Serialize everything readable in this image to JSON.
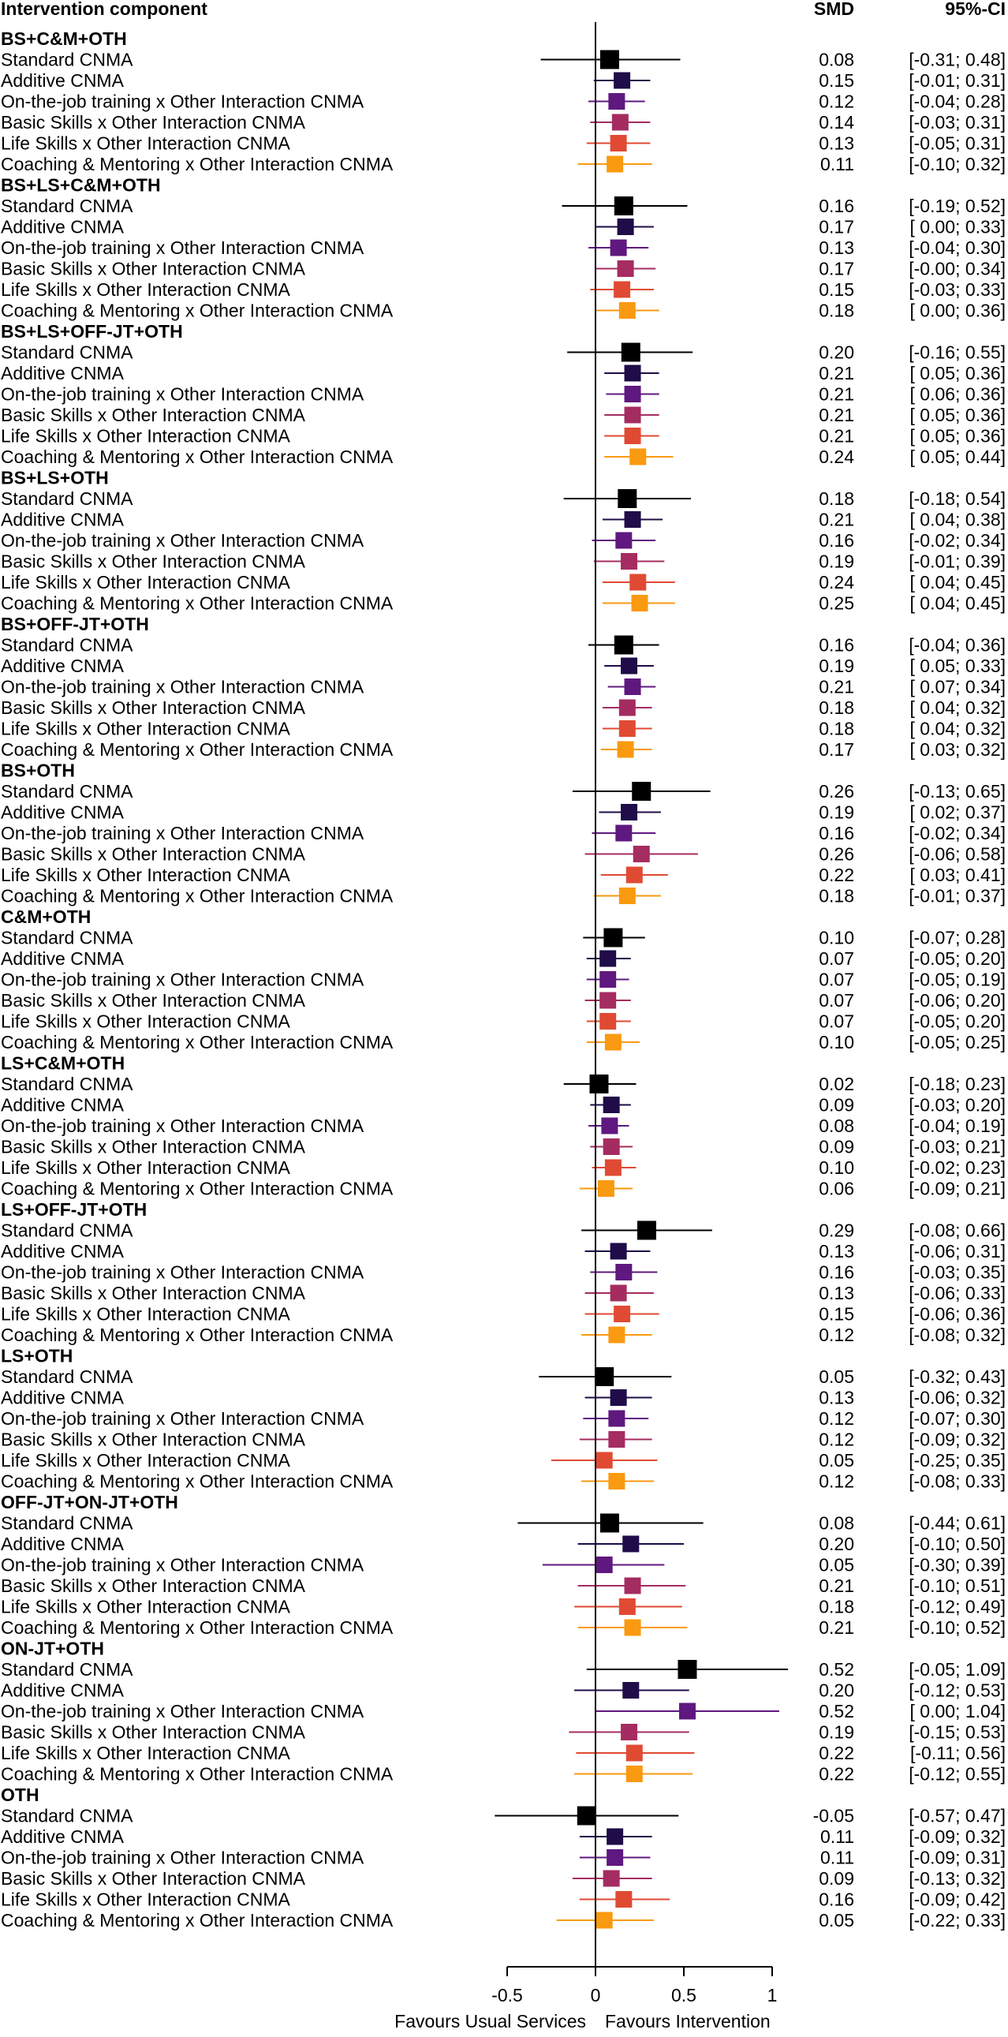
{
  "chart_data": {
    "type": "forest",
    "header": {
      "label": "Intervention component",
      "estimate": "SMD",
      "ci": "95%-CI"
    },
    "x_axis": {
      "range": [
        -0.6,
        1.1
      ],
      "ticks": [
        -0.5,
        0,
        0.5,
        1
      ],
      "tick_labels": [
        "-0.5",
        "0",
        "0.5",
        "1"
      ],
      "left_label": "Favours Usual Services",
      "right_label": "Favours Intervention",
      "reference_line": 0
    },
    "methods": [
      {
        "name": "Standard CNMA",
        "color": "#000000"
      },
      {
        "name": "Additive CNMA",
        "color": "#1f0c48"
      },
      {
        "name": "On-the-job training x Other Interaction CNMA",
        "color": "#5f187f"
      },
      {
        "name": "Basic Skills x Other Interaction CNMA",
        "color": "#a52c60"
      },
      {
        "name": "Life Skills x Other Interaction CNMA",
        "color": "#e04a33"
      },
      {
        "name": "Coaching & Mentoring x Other Interaction CNMA",
        "color": "#f99a10"
      }
    ],
    "groups": [
      {
        "name": "BS+C&M+OTH",
        "estimates": [
          {
            "smd": 0.08,
            "lower": -0.31,
            "upper": 0.48,
            "smd_label": "0.08",
            "ci_label": "[-0.31; 0.48]"
          },
          {
            "smd": 0.15,
            "lower": -0.01,
            "upper": 0.31,
            "smd_label": "0.15",
            "ci_label": "[-0.01; 0.31]"
          },
          {
            "smd": 0.12,
            "lower": -0.04,
            "upper": 0.28,
            "smd_label": "0.12",
            "ci_label": "[-0.04; 0.28]"
          },
          {
            "smd": 0.14,
            "lower": -0.03,
            "upper": 0.31,
            "smd_label": "0.14",
            "ci_label": "[-0.03; 0.31]"
          },
          {
            "smd": 0.13,
            "lower": -0.05,
            "upper": 0.31,
            "smd_label": "0.13",
            "ci_label": "[-0.05; 0.31]"
          },
          {
            "smd": 0.11,
            "lower": -0.1,
            "upper": 0.32,
            "smd_label": "0.11",
            "ci_label": "[-0.10; 0.32]"
          }
        ]
      },
      {
        "name": "BS+LS+C&M+OTH",
        "estimates": [
          {
            "smd": 0.16,
            "lower": -0.19,
            "upper": 0.52,
            "smd_label": "0.16",
            "ci_label": "[-0.19; 0.52]"
          },
          {
            "smd": 0.17,
            "lower": 0.0,
            "upper": 0.33,
            "smd_label": "0.17",
            "ci_label": "[ 0.00; 0.33]"
          },
          {
            "smd": 0.13,
            "lower": -0.04,
            "upper": 0.3,
            "smd_label": "0.13",
            "ci_label": "[-0.04; 0.30]"
          },
          {
            "smd": 0.17,
            "lower": -0.0,
            "upper": 0.34,
            "smd_label": "0.17",
            "ci_label": "[-0.00; 0.34]"
          },
          {
            "smd": 0.15,
            "lower": -0.03,
            "upper": 0.33,
            "smd_label": "0.15",
            "ci_label": "[-0.03; 0.33]"
          },
          {
            "smd": 0.18,
            "lower": 0.0,
            "upper": 0.36,
            "smd_label": "0.18",
            "ci_label": "[ 0.00; 0.36]"
          }
        ]
      },
      {
        "name": "BS+LS+OFF-JT+OTH",
        "estimates": [
          {
            "smd": 0.2,
            "lower": -0.16,
            "upper": 0.55,
            "smd_label": "0.20",
            "ci_label": "[-0.16; 0.55]"
          },
          {
            "smd": 0.21,
            "lower": 0.05,
            "upper": 0.36,
            "smd_label": "0.21",
            "ci_label": "[ 0.05; 0.36]"
          },
          {
            "smd": 0.21,
            "lower": 0.06,
            "upper": 0.36,
            "smd_label": "0.21",
            "ci_label": "[ 0.06; 0.36]"
          },
          {
            "smd": 0.21,
            "lower": 0.05,
            "upper": 0.36,
            "smd_label": "0.21",
            "ci_label": "[ 0.05; 0.36]"
          },
          {
            "smd": 0.21,
            "lower": 0.05,
            "upper": 0.36,
            "smd_label": "0.21",
            "ci_label": "[ 0.05; 0.36]"
          },
          {
            "smd": 0.24,
            "lower": 0.05,
            "upper": 0.44,
            "smd_label": "0.24",
            "ci_label": "[ 0.05; 0.44]"
          }
        ]
      },
      {
        "name": "BS+LS+OTH",
        "estimates": [
          {
            "smd": 0.18,
            "lower": -0.18,
            "upper": 0.54,
            "smd_label": "0.18",
            "ci_label": "[-0.18; 0.54]"
          },
          {
            "smd": 0.21,
            "lower": 0.04,
            "upper": 0.38,
            "smd_label": "0.21",
            "ci_label": "[ 0.04; 0.38]"
          },
          {
            "smd": 0.16,
            "lower": -0.02,
            "upper": 0.34,
            "smd_label": "0.16",
            "ci_label": "[-0.02; 0.34]"
          },
          {
            "smd": 0.19,
            "lower": -0.01,
            "upper": 0.39,
            "smd_label": "0.19",
            "ci_label": "[-0.01; 0.39]"
          },
          {
            "smd": 0.24,
            "lower": 0.04,
            "upper": 0.45,
            "smd_label": "0.24",
            "ci_label": "[ 0.04; 0.45]"
          },
          {
            "smd": 0.25,
            "lower": 0.04,
            "upper": 0.45,
            "smd_label": "0.25",
            "ci_label": "[ 0.04; 0.45]"
          }
        ]
      },
      {
        "name": "BS+OFF-JT+OTH",
        "estimates": [
          {
            "smd": 0.16,
            "lower": -0.04,
            "upper": 0.36,
            "smd_label": "0.16",
            "ci_label": "[-0.04; 0.36]"
          },
          {
            "smd": 0.19,
            "lower": 0.05,
            "upper": 0.33,
            "smd_label": "0.19",
            "ci_label": "[ 0.05; 0.33]"
          },
          {
            "smd": 0.21,
            "lower": 0.07,
            "upper": 0.34,
            "smd_label": "0.21",
            "ci_label": "[ 0.07; 0.34]"
          },
          {
            "smd": 0.18,
            "lower": 0.04,
            "upper": 0.32,
            "smd_label": "0.18",
            "ci_label": "[ 0.04; 0.32]"
          },
          {
            "smd": 0.18,
            "lower": 0.04,
            "upper": 0.32,
            "smd_label": "0.18",
            "ci_label": "[ 0.04; 0.32]"
          },
          {
            "smd": 0.17,
            "lower": 0.03,
            "upper": 0.32,
            "smd_label": "0.17",
            "ci_label": "[ 0.03; 0.32]"
          }
        ]
      },
      {
        "name": "BS+OTH",
        "estimates": [
          {
            "smd": 0.26,
            "lower": -0.13,
            "upper": 0.65,
            "smd_label": "0.26",
            "ci_label": "[-0.13; 0.65]"
          },
          {
            "smd": 0.19,
            "lower": 0.02,
            "upper": 0.37,
            "smd_label": "0.19",
            "ci_label": "[ 0.02; 0.37]"
          },
          {
            "smd": 0.16,
            "lower": -0.02,
            "upper": 0.34,
            "smd_label": "0.16",
            "ci_label": "[-0.02; 0.34]"
          },
          {
            "smd": 0.26,
            "lower": -0.06,
            "upper": 0.58,
            "smd_label": "0.26",
            "ci_label": "[-0.06; 0.58]"
          },
          {
            "smd": 0.22,
            "lower": 0.03,
            "upper": 0.41,
            "smd_label": "0.22",
            "ci_label": "[ 0.03; 0.41]"
          },
          {
            "smd": 0.18,
            "lower": -0.01,
            "upper": 0.37,
            "smd_label": "0.18",
            "ci_label": "[-0.01; 0.37]"
          }
        ]
      },
      {
        "name": "C&M+OTH",
        "estimates": [
          {
            "smd": 0.1,
            "lower": -0.07,
            "upper": 0.28,
            "smd_label": "0.10",
            "ci_label": "[-0.07; 0.28]"
          },
          {
            "smd": 0.07,
            "lower": -0.05,
            "upper": 0.2,
            "smd_label": "0.07",
            "ci_label": "[-0.05; 0.20]"
          },
          {
            "smd": 0.07,
            "lower": -0.05,
            "upper": 0.19,
            "smd_label": "0.07",
            "ci_label": "[-0.05; 0.19]"
          },
          {
            "smd": 0.07,
            "lower": -0.06,
            "upper": 0.2,
            "smd_label": "0.07",
            "ci_label": "[-0.06; 0.20]"
          },
          {
            "smd": 0.07,
            "lower": -0.05,
            "upper": 0.2,
            "smd_label": "0.07",
            "ci_label": "[-0.05; 0.20]"
          },
          {
            "smd": 0.1,
            "lower": -0.05,
            "upper": 0.25,
            "smd_label": "0.10",
            "ci_label": "[-0.05; 0.25]"
          }
        ]
      },
      {
        "name": "LS+C&M+OTH",
        "estimates": [
          {
            "smd": 0.02,
            "lower": -0.18,
            "upper": 0.23,
            "smd_label": "0.02",
            "ci_label": "[-0.18; 0.23]"
          },
          {
            "smd": 0.09,
            "lower": -0.03,
            "upper": 0.2,
            "smd_label": "0.09",
            "ci_label": "[-0.03; 0.20]"
          },
          {
            "smd": 0.08,
            "lower": -0.04,
            "upper": 0.19,
            "smd_label": "0.08",
            "ci_label": "[-0.04; 0.19]"
          },
          {
            "smd": 0.09,
            "lower": -0.03,
            "upper": 0.21,
            "smd_label": "0.09",
            "ci_label": "[-0.03; 0.21]"
          },
          {
            "smd": 0.1,
            "lower": -0.02,
            "upper": 0.23,
            "smd_label": "0.10",
            "ci_label": "[-0.02; 0.23]"
          },
          {
            "smd": 0.06,
            "lower": -0.09,
            "upper": 0.21,
            "smd_label": "0.06",
            "ci_label": "[-0.09; 0.21]"
          }
        ]
      },
      {
        "name": "LS+OFF-JT+OTH",
        "estimates": [
          {
            "smd": 0.29,
            "lower": -0.08,
            "upper": 0.66,
            "smd_label": "0.29",
            "ci_label": "[-0.08; 0.66]"
          },
          {
            "smd": 0.13,
            "lower": -0.06,
            "upper": 0.31,
            "smd_label": "0.13",
            "ci_label": "[-0.06; 0.31]"
          },
          {
            "smd": 0.16,
            "lower": -0.03,
            "upper": 0.35,
            "smd_label": "0.16",
            "ci_label": "[-0.03; 0.35]"
          },
          {
            "smd": 0.13,
            "lower": -0.06,
            "upper": 0.33,
            "smd_label": "0.13",
            "ci_label": "[-0.06; 0.33]"
          },
          {
            "smd": 0.15,
            "lower": -0.06,
            "upper": 0.36,
            "smd_label": "0.15",
            "ci_label": "[-0.06; 0.36]"
          },
          {
            "smd": 0.12,
            "lower": -0.08,
            "upper": 0.32,
            "smd_label": "0.12",
            "ci_label": "[-0.08; 0.32]"
          }
        ]
      },
      {
        "name": "LS+OTH",
        "estimates": [
          {
            "smd": 0.05,
            "lower": -0.32,
            "upper": 0.43,
            "smd_label": "0.05",
            "ci_label": "[-0.32; 0.43]"
          },
          {
            "smd": 0.13,
            "lower": -0.06,
            "upper": 0.32,
            "smd_label": "0.13",
            "ci_label": "[-0.06; 0.32]"
          },
          {
            "smd": 0.12,
            "lower": -0.07,
            "upper": 0.3,
            "smd_label": "0.12",
            "ci_label": "[-0.07; 0.30]"
          },
          {
            "smd": 0.12,
            "lower": -0.09,
            "upper": 0.32,
            "smd_label": "0.12",
            "ci_label": "[-0.09; 0.32]"
          },
          {
            "smd": 0.05,
            "lower": -0.25,
            "upper": 0.35,
            "smd_label": "0.05",
            "ci_label": "[-0.25; 0.35]"
          },
          {
            "smd": 0.12,
            "lower": -0.08,
            "upper": 0.33,
            "smd_label": "0.12",
            "ci_label": "[-0.08; 0.33]"
          }
        ]
      },
      {
        "name": "OFF-JT+ON-JT+OTH",
        "estimates": [
          {
            "smd": 0.08,
            "lower": -0.44,
            "upper": 0.61,
            "smd_label": "0.08",
            "ci_label": "[-0.44; 0.61]"
          },
          {
            "smd": 0.2,
            "lower": -0.1,
            "upper": 0.5,
            "smd_label": "0.20",
            "ci_label": "[-0.10; 0.50]"
          },
          {
            "smd": 0.05,
            "lower": -0.3,
            "upper": 0.39,
            "smd_label": "0.05",
            "ci_label": "[-0.30; 0.39]"
          },
          {
            "smd": 0.21,
            "lower": -0.1,
            "upper": 0.51,
            "smd_label": "0.21",
            "ci_label": "[-0.10; 0.51]"
          },
          {
            "smd": 0.18,
            "lower": -0.12,
            "upper": 0.49,
            "smd_label": "0.18",
            "ci_label": "[-0.12; 0.49]"
          },
          {
            "smd": 0.21,
            "lower": -0.1,
            "upper": 0.52,
            "smd_label": "0.21",
            "ci_label": "[-0.10; 0.52]"
          }
        ]
      },
      {
        "name": "ON-JT+OTH",
        "estimates": [
          {
            "smd": 0.52,
            "lower": -0.05,
            "upper": 1.09,
            "smd_label": "0.52",
            "ci_label": "[-0.05; 1.09]"
          },
          {
            "smd": 0.2,
            "lower": -0.12,
            "upper": 0.53,
            "smd_label": "0.20",
            "ci_label": "[-0.12; 0.53]"
          },
          {
            "smd": 0.52,
            "lower": 0.0,
            "upper": 1.04,
            "smd_label": "0.52",
            "ci_label": "[ 0.00; 1.04]"
          },
          {
            "smd": 0.19,
            "lower": -0.15,
            "upper": 0.53,
            "smd_label": "0.19",
            "ci_label": "[-0.15; 0.53]"
          },
          {
            "smd": 0.22,
            "lower": -0.11,
            "upper": 0.56,
            "smd_label": "0.22",
            "ci_label": "[-0.11; 0.56]"
          },
          {
            "smd": 0.22,
            "lower": -0.12,
            "upper": 0.55,
            "smd_label": "0.22",
            "ci_label": "[-0.12; 0.55]"
          }
        ]
      },
      {
        "name": "OTH",
        "estimates": [
          {
            "smd": -0.05,
            "lower": -0.57,
            "upper": 0.47,
            "smd_label": "-0.05",
            "ci_label": "[-0.57; 0.47]"
          },
          {
            "smd": 0.11,
            "lower": -0.09,
            "upper": 0.32,
            "smd_label": "0.11",
            "ci_label": "[-0.09; 0.32]"
          },
          {
            "smd": 0.11,
            "lower": -0.09,
            "upper": 0.31,
            "smd_label": "0.11",
            "ci_label": "[-0.09; 0.31]"
          },
          {
            "smd": 0.09,
            "lower": -0.13,
            "upper": 0.32,
            "smd_label": "0.09",
            "ci_label": "[-0.13; 0.32]"
          },
          {
            "smd": 0.16,
            "lower": -0.09,
            "upper": 0.42,
            "smd_label": "0.16",
            "ci_label": "[-0.09; 0.42]"
          },
          {
            "smd": 0.05,
            "lower": -0.22,
            "upper": 0.33,
            "smd_label": "0.05",
            "ci_label": "[-0.22; 0.33]"
          }
        ]
      }
    ]
  }
}
